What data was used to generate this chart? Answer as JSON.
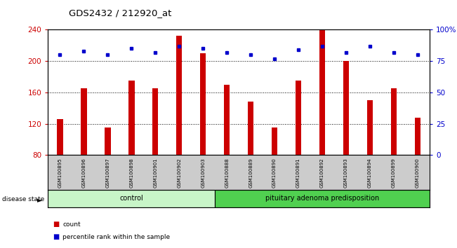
{
  "title": "GDS2432 / 212920_at",
  "samples": [
    "GSM100895",
    "GSM100896",
    "GSM100897",
    "GSM100898",
    "GSM100901",
    "GSM100902",
    "GSM100903",
    "GSM100888",
    "GSM100889",
    "GSM100890",
    "GSM100891",
    "GSM100892",
    "GSM100893",
    "GSM100894",
    "GSM100899",
    "GSM100900"
  ],
  "counts": [
    126,
    165,
    115,
    175,
    165,
    232,
    210,
    170,
    148,
    115,
    175,
    240,
    200,
    150,
    165,
    128
  ],
  "percentiles": [
    80,
    83,
    80,
    85,
    82,
    87,
    85,
    82,
    80,
    77,
    84,
    87,
    82,
    87,
    82,
    80
  ],
  "groups": [
    {
      "label": "control",
      "start": 0,
      "end": 7,
      "color": "#c8f5c8"
    },
    {
      "label": "pituitary adenoma predisposition",
      "start": 7,
      "end": 16,
      "color": "#50d050"
    }
  ],
  "ylim_left": [
    80,
    240
  ],
  "ylim_right": [
    0,
    100
  ],
  "yticks_left": [
    80,
    120,
    160,
    200,
    240
  ],
  "yticks_right": [
    0,
    25,
    50,
    75,
    100
  ],
  "ytick_labels_right": [
    "0",
    "25",
    "50",
    "75",
    "100%"
  ],
  "bar_color": "#cc0000",
  "dot_color": "#0000cc",
  "background_color": "#ffffff",
  "tick_area_color": "#cccccc",
  "legend_count_color": "#cc0000",
  "legend_pct_color": "#0000cc",
  "bar_width": 0.25
}
